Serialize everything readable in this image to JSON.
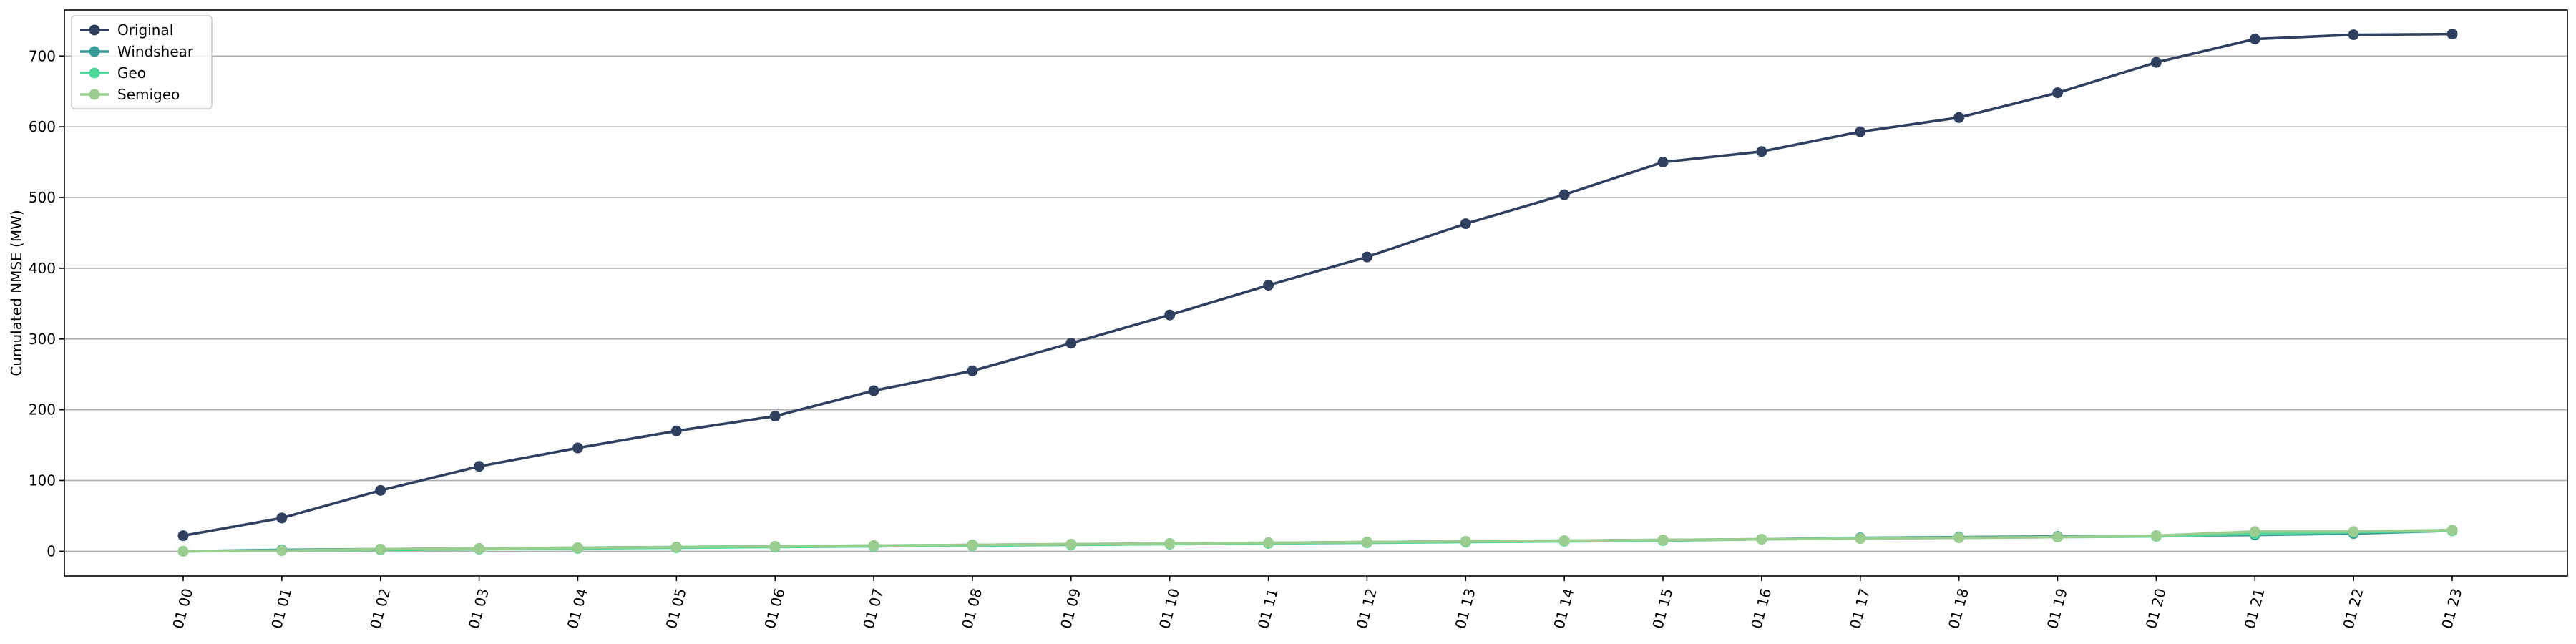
{
  "chart_data": {
    "type": "line",
    "title": "",
    "xlabel": "",
    "ylabel": "Cumulated NMSE (MW)",
    "categories": [
      "01 00",
      "01 01",
      "01 02",
      "01 03",
      "01 04",
      "01 05",
      "01 06",
      "01 07",
      "01 08",
      "01 09",
      "01 10",
      "01 11",
      "01 12",
      "01 13",
      "01 14",
      "01 15",
      "01 16",
      "01 17",
      "01 18",
      "01 19",
      "01 20",
      "01 21",
      "01 22",
      "01 23"
    ],
    "ylim": [
      -35,
      765
    ],
    "yticks": [
      0,
      100,
      200,
      300,
      400,
      500,
      600,
      700
    ],
    "grid": "horizontal",
    "legend_position": "top-left",
    "series": [
      {
        "name": "Original",
        "color": "#2e3f5f",
        "values": [
          22,
          47,
          86,
          120,
          146,
          170,
          191,
          227,
          255,
          294,
          334,
          376,
          416,
          463,
          504,
          550,
          565,
          593,
          613,
          648,
          691,
          724,
          730,
          731
        ]
      },
      {
        "name": "Windshear",
        "color": "#3a9a9a",
        "values": [
          0,
          2,
          3,
          4,
          5,
          6,
          7,
          8,
          9,
          10,
          11,
          12,
          13,
          14,
          15,
          16,
          17,
          19,
          20,
          21,
          22,
          23,
          25,
          29
        ]
      },
      {
        "name": "Geo",
        "color": "#4fd89a",
        "values": [
          0,
          1,
          2,
          3,
          4,
          5,
          6,
          7,
          8,
          9,
          10,
          11,
          12,
          13,
          14,
          15,
          17,
          18,
          19,
          20,
          21,
          25,
          27,
          29
        ]
      },
      {
        "name": "Semigeo",
        "color": "#9acd8e",
        "values": [
          0,
          1,
          3,
          4,
          5,
          6,
          7,
          8,
          9,
          10,
          11,
          12,
          13,
          14,
          15,
          16,
          17,
          18,
          19,
          20,
          22,
          28,
          28,
          30
        ]
      }
    ]
  }
}
